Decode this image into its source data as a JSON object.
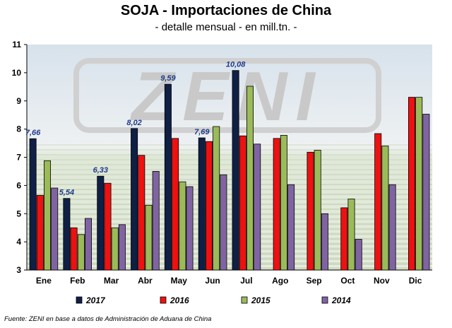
{
  "title": "SOJA - Importaciones de China",
  "subtitle": "- detalle mensual - en mill.tn. -",
  "source": "Fuente: ZENI en base a datos de Administración de Aduana de China",
  "watermark": "ZENI",
  "colors": {
    "s2017": "#0f1f45",
    "s2016": "#ee1111",
    "s2015": "#9bbb59",
    "s2014": "#8064a2"
  },
  "chart_data": {
    "type": "bar",
    "title": "SOJA - Importaciones de China",
    "subtitle": "- detalle mensual - en mill.tn. -",
    "categories": [
      "Ene",
      "Feb",
      "Mar",
      "Abr",
      "May",
      "Jun",
      "Jul",
      "Ago",
      "Sep",
      "Oct",
      "Nov",
      "Dic"
    ],
    "series": [
      {
        "name": "2017",
        "values": [
          7.66,
          5.54,
          6.33,
          8.02,
          9.59,
          7.69,
          10.08,
          null,
          null,
          null,
          null,
          null
        ]
      },
      {
        "name": "2016",
        "values": [
          5.65,
          4.5,
          6.08,
          7.07,
          7.67,
          7.56,
          7.76,
          7.67,
          7.18,
          5.21,
          7.84,
          9.13
        ]
      },
      {
        "name": "2015",
        "values": [
          6.88,
          4.26,
          4.5,
          5.3,
          6.13,
          8.09,
          9.52,
          7.78,
          7.25,
          5.52,
          7.4,
          9.13
        ]
      },
      {
        "name": "2014",
        "values": [
          5.91,
          4.83,
          4.61,
          6.5,
          5.96,
          6.38,
          7.47,
          6.03,
          5.0,
          4.09,
          6.03,
          8.53
        ]
      }
    ],
    "data_labels": [
      "7,66",
      "5,54",
      "6,33",
      "8,02",
      "9,59",
      "7,69",
      "10,08"
    ],
    "yticks": [
      "3",
      "4",
      "5",
      "6",
      "7",
      "8",
      "9",
      "10",
      "11"
    ],
    "ylim": [
      3,
      11
    ],
    "legend_labels": [
      "2017",
      "2016",
      "2015",
      "2014"
    ],
    "legend_position": "bottom",
    "grid": false
  }
}
